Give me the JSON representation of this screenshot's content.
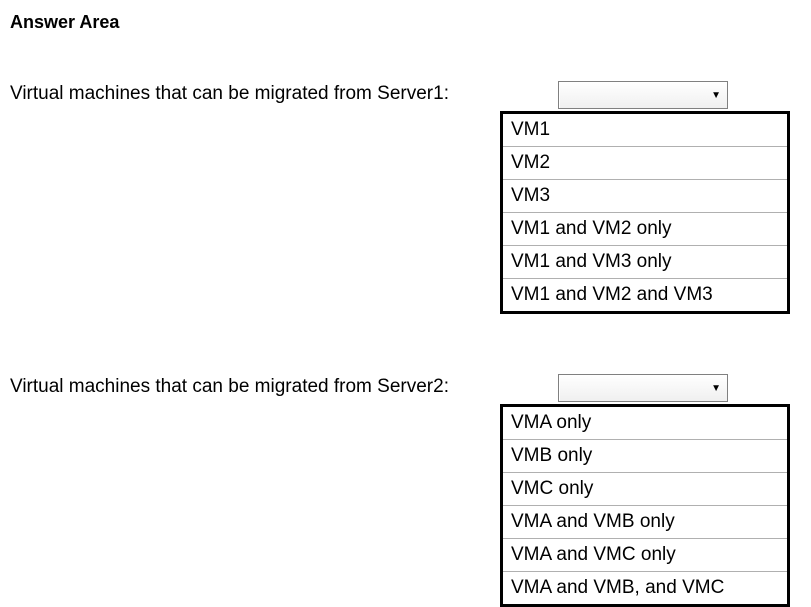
{
  "title": "Answer Area",
  "questions": [
    {
      "label": "Virtual machines that can be migrated from Server1:",
      "options": [
        "VM1",
        "VM2",
        "VM3",
        "VM1 and VM2 only",
        "VM1 and VM3 only",
        "VM1 and VM2 and VM3"
      ]
    },
    {
      "label": "Virtual machines that can be migrated from Server2:",
      "options": [
        "VMA only",
        "VMB only",
        "VMC only",
        "VMA and VMB only",
        "VMA and VMC only",
        "VMA and VMB, and VMC"
      ]
    }
  ],
  "colors": {
    "text": "#000000",
    "background": "#ffffff",
    "border_light": "#b0b0b0",
    "border_dark": "#000000",
    "dropdown_border": "#808080"
  },
  "typography": {
    "title_size": 18,
    "label_size": 19,
    "option_size": 19,
    "font_family": "Arial"
  }
}
